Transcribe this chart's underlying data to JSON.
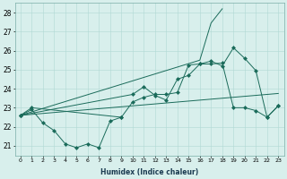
{
  "xlabel": "Humidex (Indice chaleur)",
  "xlim": [
    -0.5,
    23.5
  ],
  "ylim": [
    20.5,
    28.5
  ],
  "x_ticks": [
    0,
    1,
    2,
    3,
    4,
    5,
    6,
    7,
    8,
    9,
    10,
    11,
    12,
    13,
    14,
    15,
    16,
    17,
    18,
    19,
    20,
    21,
    22,
    23
  ],
  "y_ticks": [
    21,
    22,
    23,
    24,
    25,
    26,
    27,
    28
  ],
  "line_color": "#1a6b5a",
  "bg_color": "#d8efec",
  "grid_color": "#b0d8d4",
  "line1_x": [
    0,
    1,
    2,
    3,
    4,
    5,
    6,
    7,
    8,
    9
  ],
  "line1_y": [
    22.6,
    22.9,
    22.2,
    21.8,
    21.1,
    20.9,
    21.1,
    20.9,
    22.3,
    22.5
  ],
  "line2_x": [
    0,
    1,
    2,
    3,
    4,
    5,
    6,
    7,
    8,
    9,
    10,
    11,
    12,
    13,
    14,
    15,
    16,
    17,
    18,
    19,
    20,
    21,
    22,
    23
  ],
  "line2_y": [
    22.6,
    22.65,
    22.7,
    22.75,
    22.8,
    22.85,
    22.9,
    22.95,
    23.0,
    23.05,
    23.1,
    23.15,
    23.2,
    23.25,
    23.3,
    23.35,
    23.4,
    23.45,
    23.5,
    23.55,
    23.6,
    23.65,
    23.7,
    23.75
  ],
  "line3_x": [
    0,
    1,
    9,
    10,
    11,
    12,
    13,
    14,
    15,
    16,
    17,
    18,
    19,
    20,
    21,
    22,
    23
  ],
  "line3_y": [
    22.6,
    23.0,
    22.5,
    23.3,
    23.55,
    23.7,
    23.7,
    23.8,
    25.25,
    25.3,
    25.3,
    25.35,
    23.0,
    23.0,
    22.85,
    22.5,
    23.1
  ],
  "line4_x": [
    0,
    10,
    11,
    12,
    13,
    14,
    15,
    16,
    17,
    18,
    19,
    20,
    21,
    22,
    23
  ],
  "line4_y": [
    22.6,
    23.7,
    24.1,
    23.65,
    23.4,
    24.5,
    24.7,
    25.3,
    25.45,
    25.2,
    26.15,
    25.6,
    24.95,
    22.5,
    23.1
  ],
  "line5_x": [
    0,
    16,
    17,
    18
  ],
  "line5_y": [
    22.6,
    25.5,
    27.45,
    28.2
  ]
}
